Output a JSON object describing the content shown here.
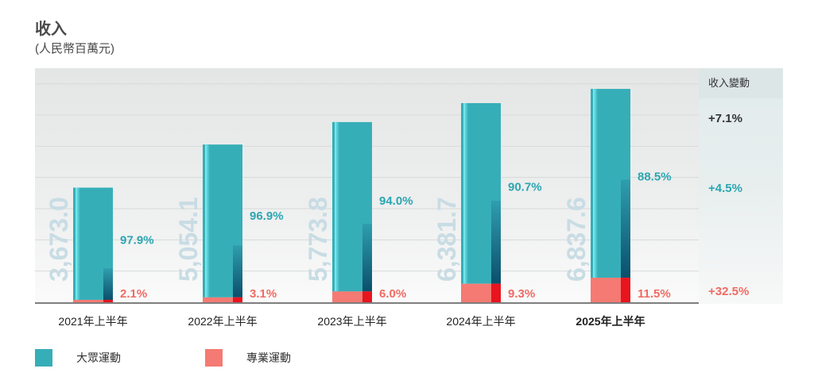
{
  "title": "收入",
  "subtitle": "(人民幣百萬元)",
  "change_header": "收入變動",
  "colors": {
    "mass": "#36aeb8",
    "pro": "#f47a73",
    "pro_dark": "#e8141e",
    "mass_label": "#2ba6b2",
    "pro_label": "#f06b62",
    "change_mass": "#2ba6b2",
    "change_pro": "#f06b62",
    "total_label": "#c8dce4",
    "text": "#333333"
  },
  "legend": [
    {
      "label": "大眾運動",
      "color": "#36aeb8"
    },
    {
      "label": "專業運動",
      "color": "#f47a73"
    }
  ],
  "chart_data": {
    "type": "bar",
    "stacked": true,
    "categories": [
      "2021年上半年",
      "2022年上半年",
      "2023年上半年",
      "2024年上半年",
      "2025年上半年"
    ],
    "totals": [
      3673.0,
      5054.1,
      5773.8,
      6381.7,
      6837.6
    ],
    "total_labels": [
      "3,673.0",
      "5,054.1",
      "5,773.8",
      "6,381.7",
      "6,837.6"
    ],
    "series": [
      {
        "name": "大眾運動",
        "share_labels": [
          "97.9%",
          "96.9%",
          "94.0%",
          "90.7%",
          "88.5%"
        ],
        "share": [
          97.9,
          96.9,
          94.0,
          90.7,
          88.5
        ]
      },
      {
        "name": "專業運動",
        "share_labels": [
          "2.1%",
          "3.1%",
          "6.0%",
          "9.3%",
          "11.5%"
        ],
        "share": [
          2.1,
          3.1,
          6.0,
          9.3,
          11.5
        ]
      }
    ],
    "change_2025": [
      {
        "series": "total",
        "label": "+7.1%"
      },
      {
        "series": "大眾運動",
        "label": "+4.5%"
      },
      {
        "series": "專業運動",
        "label": "+32.5%"
      }
    ],
    "ylim": [
      0,
      7500
    ],
    "grid": true,
    "highlight_category": "2025年上半年"
  }
}
